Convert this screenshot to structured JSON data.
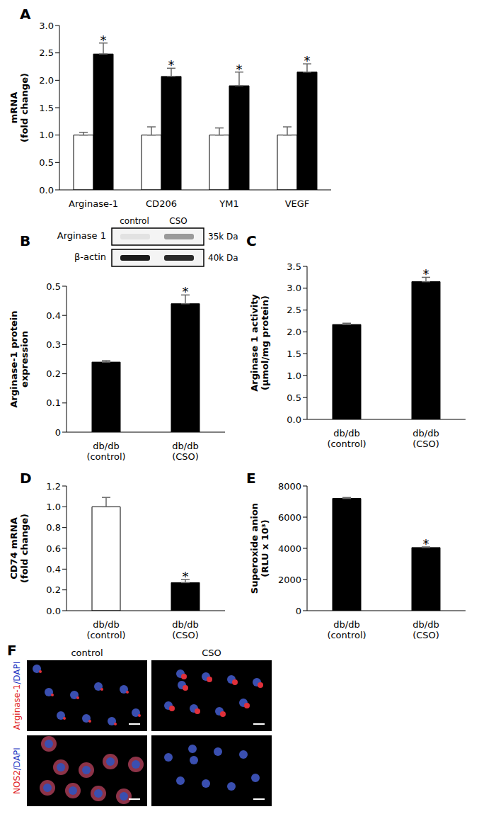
{
  "chart_data": [
    {
      "panel": "A",
      "type": "bar",
      "y_label": "mRNA\n(fold change)",
      "categories": [
        "Arginase-1",
        "CD206",
        "YM1",
        "VEGF"
      ],
      "series": [
        {
          "color": "#ffffff",
          "values": [
            1.0,
            1.0,
            1.0,
            1.0
          ],
          "errors": [
            0.05,
            0.15,
            0.13,
            0.15
          ]
        },
        {
          "color": "#000000",
          "values": [
            2.48,
            2.07,
            1.9,
            2.15
          ],
          "errors": [
            0.2,
            0.15,
            0.25,
            0.15
          ],
          "annotations": [
            "*",
            "*",
            "*",
            "*"
          ]
        }
      ],
      "ylim": [
        0,
        3
      ],
      "yticks": [
        {
          "value": 0,
          "label": "0.0"
        },
        0.5,
        {
          "value": 1,
          "label": "1.0"
        },
        1.5,
        {
          "value": 2,
          "label": "2.0"
        },
        2.5,
        {
          "value": 3,
          "label": "3.0"
        }
      ]
    },
    {
      "panel": "B",
      "type": "bar",
      "y_label": "Arginase-1 protein\nexpression",
      "categories": [
        "db/db\n(control)",
        "db/db\n(CSO)"
      ],
      "values": [
        0.24,
        0.44
      ],
      "errors": [
        0.005,
        0.03
      ],
      "colors": [
        "#000000",
        "#000000"
      ],
      "annotations": [
        null,
        "*"
      ],
      "ylim": [
        0,
        0.5
      ],
      "yticks": [
        0,
        0.1,
        0.2,
        0.3,
        0.4,
        0.5
      ]
    },
    {
      "panel": "C",
      "type": "bar",
      "y_label": "Arginase 1 activity\n(μmol/mg protein)",
      "categories": [
        "db/db\n(control)",
        "db/db\n(CSO)"
      ],
      "values": [
        2.17,
        3.15
      ],
      "errors": [
        0.03,
        0.1
      ],
      "colors": [
        "#000000",
        "#000000"
      ],
      "annotations": [
        null,
        "*"
      ],
      "ylim": [
        0,
        3.5
      ],
      "yticks": [
        {
          "value": 0,
          "label": "0.0"
        },
        0.5,
        {
          "value": 1,
          "label": "1.0"
        },
        1.5,
        {
          "value": 2,
          "label": "2.0"
        },
        2.5,
        {
          "value": 3,
          "label": "3.0"
        },
        3.5
      ]
    },
    {
      "panel": "D",
      "type": "bar",
      "y_label": "CD74 mRNA\n(fold change)",
      "categories": [
        "db/db\n(control)",
        "db/db\n(CSO)"
      ],
      "values": [
        1.0,
        0.27
      ],
      "errors": [
        0.09,
        0.03
      ],
      "colors": [
        "#ffffff",
        "#000000"
      ],
      "annotations": [
        null,
        "*"
      ],
      "ylim": [
        0,
        1.2
      ],
      "yticks": [
        {
          "value": 0,
          "label": "0.0"
        },
        0.2,
        0.4,
        0.6,
        0.8,
        {
          "value": 1,
          "label": "1.0"
        },
        1.2
      ]
    },
    {
      "panel": "E",
      "type": "bar",
      "y_label": "Superoxide anion\n(RLU x 10³)",
      "categories": [
        "db/db\n(control)",
        "db/db\n(CSO)"
      ],
      "values": [
        7200,
        4050
      ],
      "errors": [
        60,
        40
      ],
      "colors": [
        "#000000",
        "#000000"
      ],
      "annotations": [
        null,
        "*"
      ],
      "ylim": [
        0,
        8000
      ],
      "yticks": [
        0,
        2000,
        4000,
        6000,
        8000
      ]
    }
  ],
  "blot": {
    "lanes": [
      "control",
      "CSO"
    ],
    "rows": [
      {
        "label": "Arginase 1",
        "size": "35k Da"
      },
      {
        "label": "β-actin",
        "size": "40k Da"
      }
    ]
  },
  "images": {
    "panel": "F",
    "columns": [
      "control",
      "CSO"
    ],
    "rows": [
      "Arginase-1/DAPI",
      "NOS2/DAPI"
    ]
  }
}
